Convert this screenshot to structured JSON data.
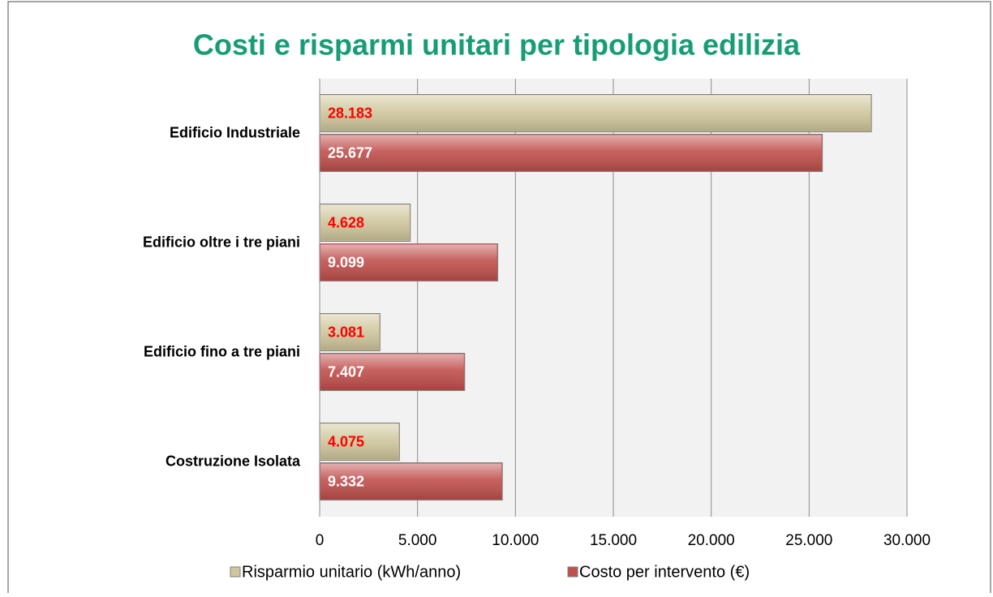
{
  "chart_data": {
    "type": "hbar",
    "title": "Costi e risparmi unitari per tipologia edilizia",
    "categories": [
      "Edificio Industriale",
      "Edificio oltre i tre piani",
      "Edificio fino a tre piani",
      "Costruzione Isolata"
    ],
    "series": [
      {
        "name": "Risparmio unitario (kWh/anno)",
        "color": "#cfc79c",
        "label_color": "#ff0000",
        "values": [
          28183,
          4628,
          3081,
          4075
        ],
        "value_labels": [
          "28.183",
          "4.628",
          "3.081",
          "4.075"
        ]
      },
      {
        "name": "Costo per intervento (€)",
        "color": "#c0504d",
        "label_color": "#ffffff",
        "values": [
          25677,
          9099,
          7407,
          9332
        ],
        "value_labels": [
          "25.677",
          "9.099",
          "7.407",
          "9.332"
        ]
      }
    ],
    "xlim": [
      0,
      30000
    ],
    "xticks": [
      0,
      {
        "value": 5000,
        "label": "5.000"
      },
      {
        "value": 10000,
        "label": "10.000"
      },
      {
        "value": 15000,
        "label": "15.000"
      },
      {
        "value": 20000,
        "label": "20.000"
      },
      {
        "value": 25000,
        "label": "25.000"
      },
      {
        "value": 30000,
        "label": "30.000"
      }
    ],
    "grid": true,
    "legend": "bottom"
  }
}
